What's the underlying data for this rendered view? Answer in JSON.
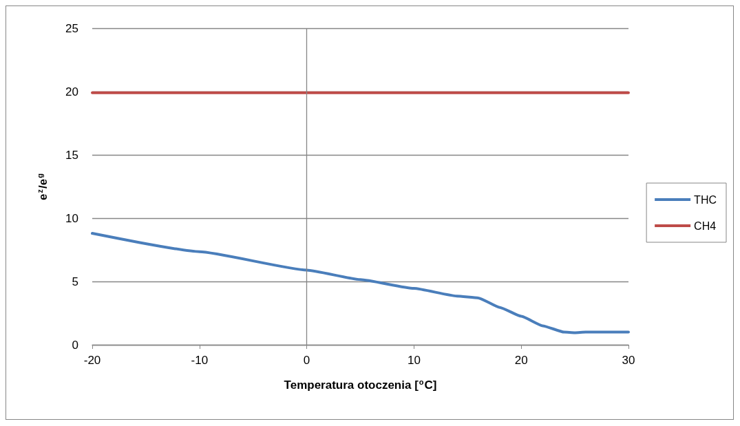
{
  "chart_data": {
    "type": "line",
    "xlabel": "Temperatura otoczenia [$^{o}$C]",
    "ylabel": "e$^{z}$/e$^{g}$",
    "x": [
      -20,
      -10,
      0,
      5,
      10,
      14,
      16,
      18,
      20,
      22,
      24,
      25,
      26,
      30
    ],
    "series": [
      {
        "name": "THC",
        "color": "#4a7ebb",
        "values": [
          8.8,
          7.35,
          5.9,
          5.15,
          4.45,
          3.85,
          3.7,
          2.95,
          2.25,
          1.5,
          1.0,
          0.95,
          1.0,
          1.0
        ]
      },
      {
        "name": "CH4",
        "color": "#be4b48",
        "values": [
          19.9,
          19.9,
          19.9,
          19.9,
          19.9,
          19.9,
          19.9,
          19.9,
          19.9,
          19.9,
          19.9,
          19.9,
          19.9,
          19.9
        ]
      }
    ],
    "xlim": [
      -20,
      30
    ],
    "xticks": [
      -20,
      -10,
      0,
      10,
      20,
      30
    ],
    "ylim": [
      0,
      25
    ],
    "yticks": [
      0,
      5,
      10,
      15,
      20,
      25
    ],
    "ref_lines": [
      {
        "axis": "x",
        "value": 0,
        "color": "#868686"
      }
    ],
    "grid": "y",
    "legend": "right",
    "marker": "none",
    "line_style": "solid"
  }
}
